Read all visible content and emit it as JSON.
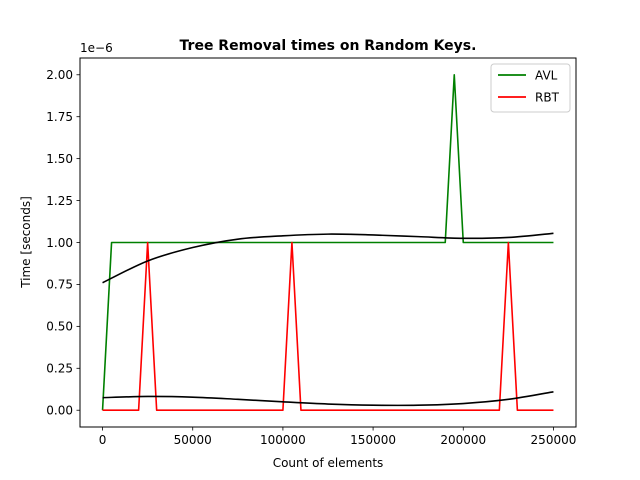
{
  "chart_data": {
    "type": "line",
    "title": "Tree Removal times on Random Keys.",
    "xlabel": "Count of elements",
    "ylabel": "Time [seconds]",
    "y_offset_label": "1e−6",
    "xlim": [
      -12500,
      262500
    ],
    "ylim": [
      -0.1,
      2.1
    ],
    "x_ticks": [
      0,
      50000,
      100000,
      150000,
      200000,
      250000
    ],
    "x_tick_labels": [
      "0",
      "50000",
      "100000",
      "150000",
      "200000",
      "250000"
    ],
    "y_ticks": [
      0.0,
      0.25,
      0.5,
      0.75,
      1.0,
      1.25,
      1.5,
      1.75,
      2.0
    ],
    "y_tick_labels": [
      "0.00",
      "0.25",
      "0.50",
      "0.75",
      "1.00",
      "1.25",
      "1.50",
      "1.75",
      "2.00"
    ],
    "legend_position": "top-right",
    "series": [
      {
        "name": "AVL",
        "color": "#008000",
        "x": [
          0,
          5000,
          190000,
          195000,
          200000,
          250000
        ],
        "y": [
          0,
          1,
          1,
          2,
          1,
          1
        ]
      },
      {
        "name": "RBT",
        "color": "#ff0000",
        "x": [
          0,
          20000,
          25000,
          30000,
          100000,
          105000,
          110000,
          220000,
          225000,
          230000,
          250000
        ],
        "y": [
          0,
          0,
          1,
          0,
          0,
          1,
          0,
          0,
          1,
          0,
          0
        ]
      }
    ],
    "fits": [
      {
        "name": "AVL trend",
        "color": "#000000",
        "x": [
          0,
          25000,
          50000,
          75000,
          100000,
          125000,
          150000,
          175000,
          200000,
          225000,
          250000
        ],
        "y": [
          0.76,
          0.89,
          0.97,
          1.02,
          1.04,
          1.05,
          1.045,
          1.035,
          1.025,
          1.03,
          1.055
        ]
      },
      {
        "name": "RBT trend",
        "color": "#000000",
        "x": [
          0,
          25000,
          50000,
          75000,
          100000,
          125000,
          150000,
          175000,
          200000,
          225000,
          250000
        ],
        "y": [
          0.075,
          0.082,
          0.078,
          0.065,
          0.05,
          0.037,
          0.03,
          0.03,
          0.04,
          0.065,
          0.11
        ]
      }
    ]
  }
}
